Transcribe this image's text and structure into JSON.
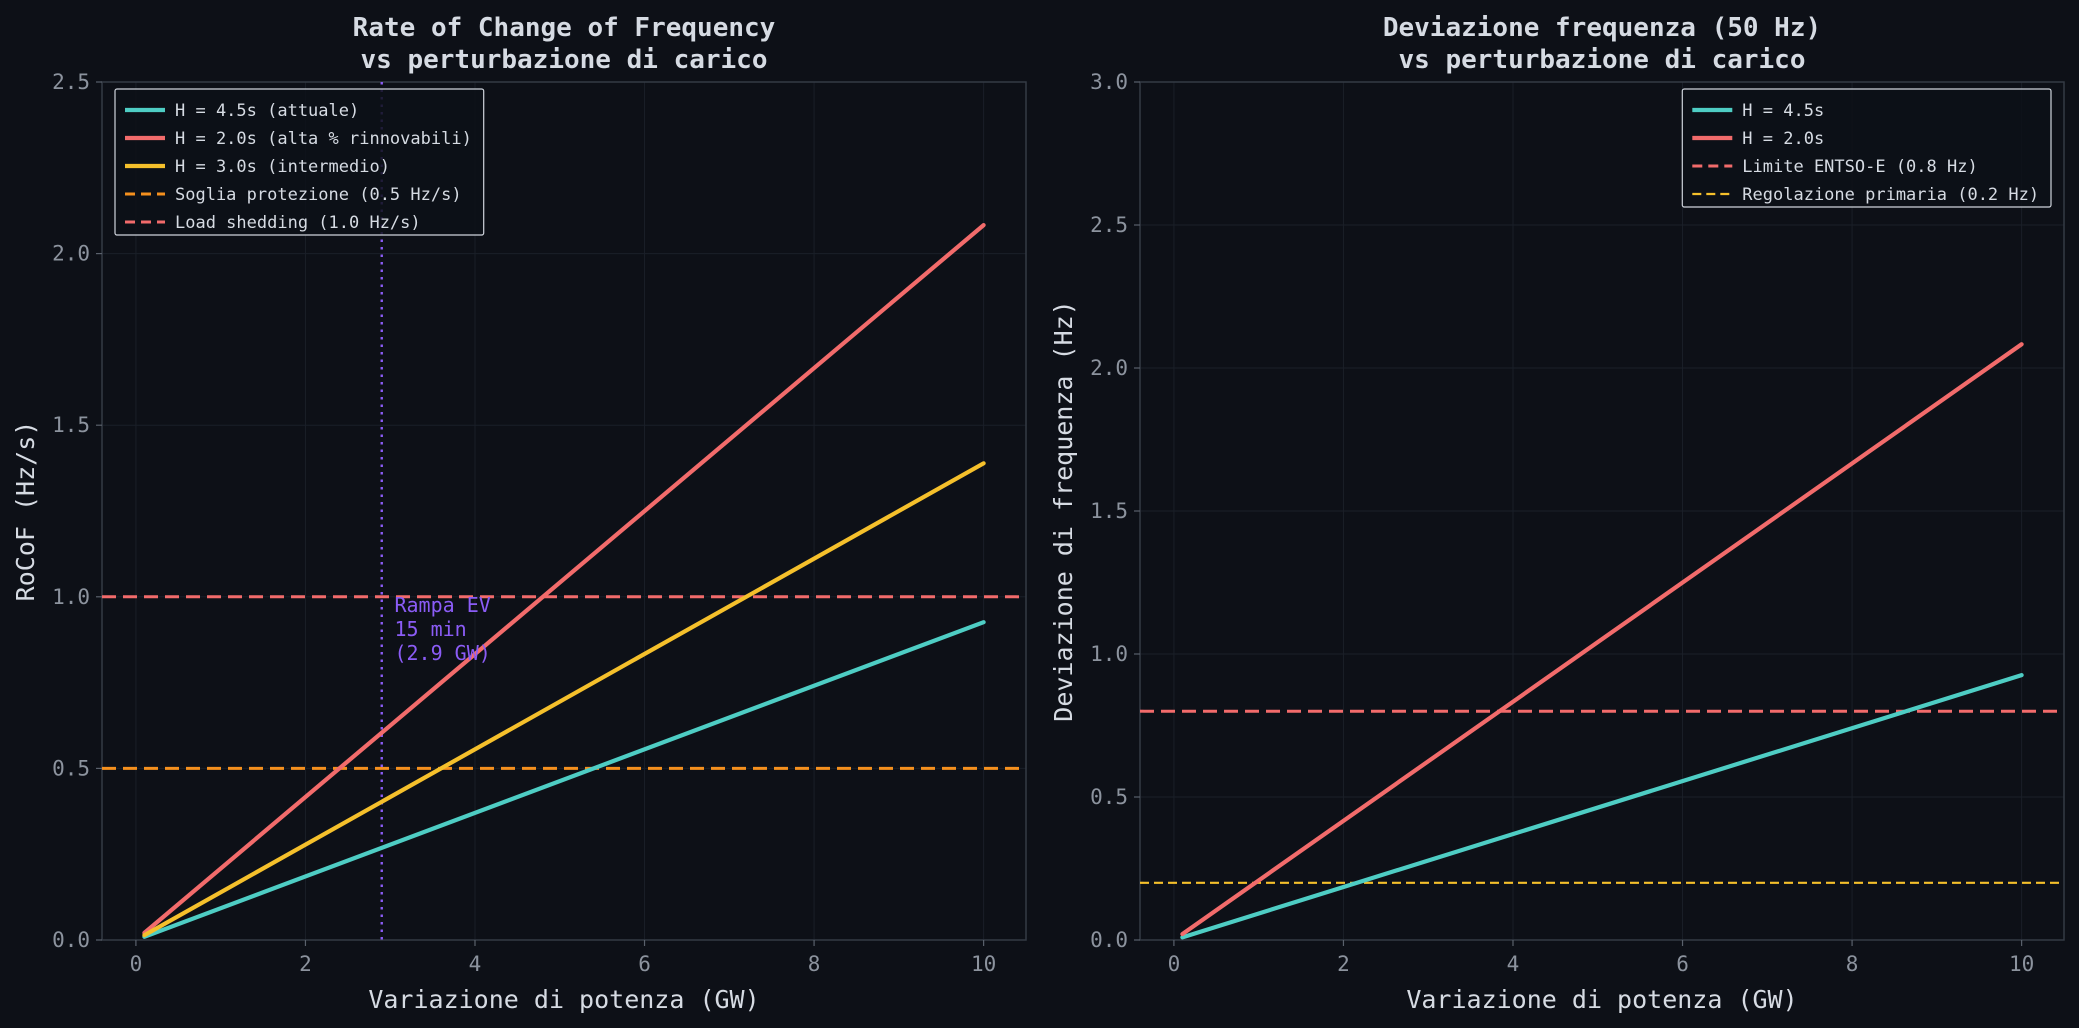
{
  "chart_data": [
    {
      "type": "line",
      "title": "Rate of Change of Frequency\nvs perturbazione di carico",
      "xlabel": "Variazione di potenza (GW)",
      "ylabel": "RoCoF (Hz/s)",
      "xlim": [
        -0.4,
        10.5
      ],
      "ylim": [
        0,
        2.5
      ],
      "xticks": [
        0,
        2,
        4,
        6,
        8,
        10
      ],
      "yticks": [
        0.0,
        0.5,
        1.0,
        1.5,
        2.0,
        2.5
      ],
      "xtick_labels": [
        "0",
        "2",
        "4",
        "6",
        "8",
        "10"
      ],
      "ytick_labels": [
        "0.0",
        "0.5",
        "1.0",
        "1.5",
        "2.0",
        "2.5"
      ],
      "grid": true,
      "legend_position": "upper-left",
      "series": [
        {
          "name": "H = 4.5s (attuale)",
          "color": "#4ecdc4",
          "style": "solid",
          "x": [
            0.1,
            10
          ],
          "y": [
            0.0093,
            0.926
          ]
        },
        {
          "name": "H = 2.0s (alta % rinnovabili)",
          "color": "#f26b6b",
          "style": "solid",
          "x": [
            0.1,
            10
          ],
          "y": [
            0.0208,
            2.083
          ]
        },
        {
          "name": "H = 3.0s (intermedio)",
          "color": "#f5c02b",
          "style": "solid",
          "x": [
            0.1,
            10
          ],
          "y": [
            0.0139,
            1.389
          ]
        }
      ],
      "hlines": [
        {
          "name": "Soglia protezione (0.5 Hz/s)",
          "y": 0.5,
          "color": "#f5901e",
          "style": "dashed"
        },
        {
          "name": "Load shedding (1.0 Hz/s)",
          "y": 1.0,
          "color": "#f26b6b",
          "style": "dashed"
        }
      ],
      "vlines": [
        {
          "x": 2.9,
          "color": "#8b5cf6",
          "style": "dotted"
        }
      ],
      "annotations": [
        {
          "lines": [
            "Rampa EV",
            "15 min",
            "(2.9 GW)"
          ],
          "x": 3.05,
          "y": 0.955,
          "color": "#8b5cf6"
        }
      ]
    },
    {
      "type": "line",
      "title": "Deviazione frequenza (50 Hz)\nvs perturbazione di carico",
      "xlabel": "Variazione di potenza (GW)",
      "ylabel": "Deviazione di frequenza (Hz)",
      "xlim": [
        -0.4,
        10.5
      ],
      "ylim": [
        0,
        3.0
      ],
      "xticks": [
        0,
        2,
        4,
        6,
        8,
        10
      ],
      "yticks": [
        0.0,
        0.5,
        1.0,
        1.5,
        2.0,
        2.5,
        3.0
      ],
      "xtick_labels": [
        "0",
        "2",
        "4",
        "6",
        "8",
        "10"
      ],
      "ytick_labels": [
        "0.0",
        "0.5",
        "1.0",
        "1.5",
        "2.0",
        "2.5",
        "3.0"
      ],
      "grid": true,
      "legend_position": "upper-right",
      "series": [
        {
          "name": "H = 4.5s",
          "color": "#4ecdc4",
          "style": "solid",
          "x": [
            0.1,
            10
          ],
          "y": [
            0.0093,
            0.926
          ]
        },
        {
          "name": "H = 2.0s",
          "color": "#f26b6b",
          "style": "solid",
          "x": [
            0.1,
            10
          ],
          "y": [
            0.0208,
            2.083
          ]
        }
      ],
      "hlines": [
        {
          "name": "Limite ENTSO-E (0.8 Hz)",
          "y": 0.8,
          "color": "#f26b6b",
          "style": "dashed"
        },
        {
          "name": "Regolazione primaria (0.2 Hz)",
          "y": 0.2,
          "color": "#f5c02b",
          "style": "dashed-thin"
        }
      ],
      "vlines": [],
      "annotations": []
    }
  ]
}
